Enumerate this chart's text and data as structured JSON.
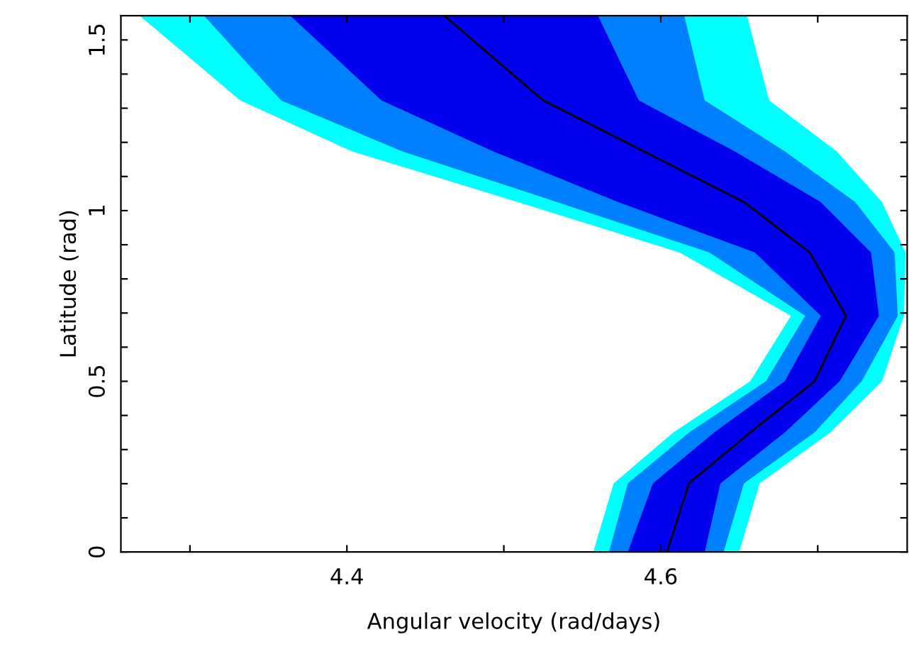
{
  "chart_data": {
    "type": "line",
    "orientation": "horizontal",
    "xlabel": "Angular velocity (rad/days)",
    "ylabel": "Latitude (rad)",
    "x": [
      0,
      0.201,
      0.35,
      0.5,
      0.692,
      0.877,
      1.025,
      1.174,
      1.323,
      1.571
    ],
    "series": [
      {
        "color": "#00ffff",
        "values": [
          null,
          null,
          null,
          null,
          null,
          null,
          null,
          null,
          null,
          null
        ],
        "lower": [
          4.557,
          4.57,
          4.608,
          4.657,
          4.683,
          4.612,
          4.509,
          4.403,
          4.332,
          4.268
        ],
        "upper": [
          4.65,
          4.663,
          4.708,
          4.741,
          4.755,
          4.756,
          4.741,
          4.712,
          4.669,
          4.655
        ]
      },
      {
        "color": "#0080ff",
        "values": [
          null,
          null,
          null,
          null,
          null,
          null,
          null,
          null,
          null,
          null
        ],
        "lower": [
          4.567,
          4.579,
          4.618,
          4.667,
          4.692,
          4.631,
          4.534,
          4.435,
          4.358,
          4.309
        ],
        "upper": [
          4.64,
          4.653,
          4.698,
          4.728,
          4.751,
          4.749,
          4.724,
          4.679,
          4.628,
          4.615
        ]
      },
      {
        "color": "#0000ee",
        "values": [
          null,
          null,
          null,
          null,
          null,
          null,
          null,
          null,
          null,
          null
        ],
        "lower": [
          4.579,
          4.595,
          4.634,
          4.679,
          4.702,
          4.66,
          4.573,
          4.493,
          4.422,
          4.364
        ],
        "upper": [
          4.628,
          4.638,
          4.679,
          4.714,
          4.739,
          4.734,
          4.702,
          4.647,
          4.586,
          4.56
        ]
      },
      {
        "type": "line",
        "color": "#000000",
        "values": [
          4.604,
          4.618,
          4.657,
          4.698,
          4.718,
          4.695,
          4.653,
          4.589,
          4.525,
          4.462
        ]
      }
    ],
    "xlim": [
      4.256,
      4.757
    ],
    "ylim": [
      0,
      1.571
    ],
    "xticks": [
      {
        "value": 4.3,
        "label": null
      },
      4.4,
      {
        "value": 4.5,
        "label": null
      },
      4.6,
      {
        "value": 4.7,
        "label": null
      }
    ],
    "yticks": [
      0,
      {
        "value": 0.1,
        "label": null
      },
      {
        "value": 0.2,
        "label": null
      },
      {
        "value": 0.3,
        "label": null
      },
      {
        "value": 0.4,
        "label": null
      },
      0.5,
      {
        "value": 0.6,
        "label": null
      },
      {
        "value": 0.7,
        "label": null
      },
      {
        "value": 0.8,
        "label": null
      },
      {
        "value": 0.9,
        "label": null
      },
      1,
      {
        "value": 1.1,
        "label": null
      },
      {
        "value": 1.2,
        "label": null
      },
      {
        "value": 1.3,
        "label": null
      },
      {
        "value": 1.4,
        "label": null
      },
      1.5
    ],
    "grid": false,
    "legend": false
  }
}
